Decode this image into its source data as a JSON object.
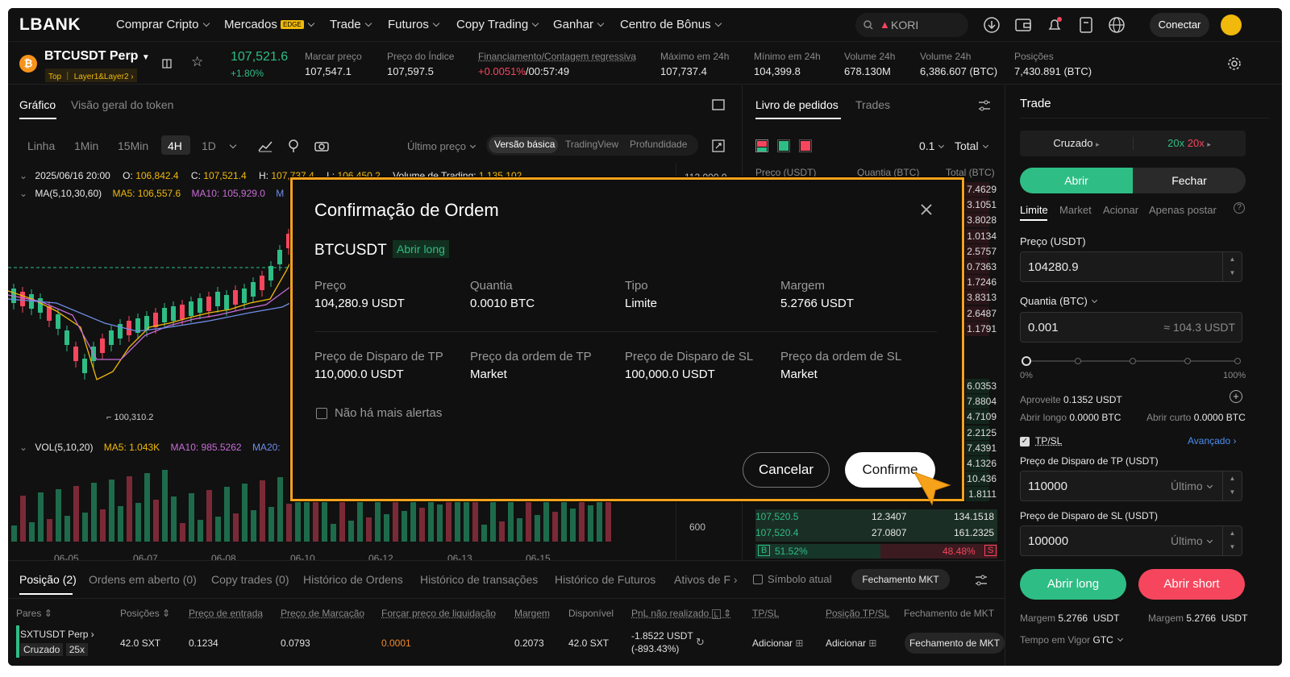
{
  "brand": "LBANK",
  "nav": {
    "items": [
      "Comprar Cripto",
      "Mercados",
      "Trade",
      "Futuros",
      "Copy Trading",
      "Ganhar",
      "Centro de Bônus"
    ],
    "badge_edge": "EDGE",
    "search_value": "KORI",
    "connect": "Conectar"
  },
  "ticker": {
    "symbol": "BTCUSDT Perp",
    "tag_top": "Top",
    "tag_layer": "Layer1&Layer2",
    "price": "107,521.6",
    "change": "+1.80%",
    "stats": [
      {
        "label": "Marcar preço",
        "value": "107,547.1"
      },
      {
        "label": "Preço do Índice",
        "value": "107,597.5"
      },
      {
        "label": "Financiamento/Contagem regressiva",
        "value_a": "+0.0051%",
        "value_b": "/00:57:49"
      },
      {
        "label": "Máximo em 24h",
        "value": "107,737.4"
      },
      {
        "label": "Mínimo em 24h",
        "value": "104,399.8"
      },
      {
        "label": "Volume 24h",
        "value": "678.130M"
      },
      {
        "label": "Volume 24h",
        "value": "6,386.607 (BTC)"
      },
      {
        "label": "Posições",
        "value": "7,430.891 (BTC)"
      }
    ]
  },
  "chart": {
    "tabs": [
      "Gráfico",
      "Visão geral do token"
    ],
    "intervals": [
      "Linha",
      "1Min",
      "15Min",
      "4H",
      "1D"
    ],
    "price_mode": "Último preço",
    "views": [
      "Versão básica",
      "TradingView",
      "Profundidade"
    ],
    "ohlc": {
      "date": "2025/06/16 20:00",
      "o_label": "O:",
      "o": "106,842.4",
      "c_label": "C:",
      "c": "107,521.4",
      "h_label": "H:",
      "h": "107,737.4",
      "l_label": "L:",
      "l": "106,450.2",
      "vol_label": "Volume de Trading:",
      "vol": "1,135.102"
    },
    "ma": {
      "label": "MA(5,10,30,60)",
      "ma5": "MA5: 106,557.6",
      "ma10": "MA10: 105,929.0",
      "ma_short": "M"
    },
    "vol_ind": {
      "label": "VOL(5,10,20)",
      "ma5": "MA5: 1.043K",
      "ma10": "MA10: 985.5262",
      "ma20": "MA20:"
    },
    "low_mark": "100,310.2",
    "axis_top": "112,000.0",
    "axis_vol": "600",
    "dates": [
      "06-05",
      "06-07",
      "06-08",
      "06-10",
      "06-12",
      "06-13",
      "06-15"
    ]
  },
  "orderbook": {
    "tabs": [
      "Livro de pedidos",
      "Trades"
    ],
    "precision": "0.1",
    "total": "Total",
    "headers": [
      "Preço (USDT)",
      "Quantia (BTC)",
      "Total (BTC)"
    ],
    "asks_total": [
      "7.4629",
      "3.1051",
      "3.8028",
      "1.0134",
      "2.5757",
      "0.7363",
      "1.7246",
      "3.8313",
      "2.6487",
      "1.1791"
    ],
    "bids_total": [
      "6.0353",
      "7.8804",
      "4.7109",
      "2.2125",
      "7.4391",
      "4.1326",
      "10.436",
      "1.8111"
    ],
    "bottom_rows": [
      {
        "price": "107,520.5",
        "qty": "12.3407",
        "total": "134.1518"
      },
      {
        "price": "107,520.4",
        "qty": "27.0807",
        "total": "161.2325"
      }
    ],
    "buy_pct": "51.52%",
    "sell_pct": "48.48%",
    "b": "B",
    "s": "S"
  },
  "trade": {
    "title": "Trade",
    "margin_mode": "Cruzado",
    "lev_a": "20x",
    "lev_b": "20x",
    "open": "Abrir",
    "close": "Fechar",
    "types": [
      "Limite",
      "Market",
      "Acionar",
      "Apenas postar"
    ],
    "price_label": "Preço (USDT)",
    "price_value": "104280.9",
    "qty_label": "Quantia (BTC)",
    "qty_value": "0.001",
    "qty_approx": "≈ 104.3 USDT",
    "slider_min": "0%",
    "slider_max": "100%",
    "aproveite_label": "Aproveite",
    "aproveite": "0.1352 USDT",
    "open_long_label": "Abrir longo",
    "open_long": "0.0000 BTC",
    "open_short_label": "Abrir curto",
    "open_short": "0.0000 BTC",
    "tpsl": "TP/SL",
    "advanced": "Avançado",
    "tp_label": "Preço de Disparo de TP (USDT)",
    "tp_value": "110000",
    "tp_mode": "Último",
    "sl_label": "Preço de Disparo de SL (USDT)",
    "sl_value": "100000",
    "sl_mode": "Último",
    "btn_long": "Abrir long",
    "btn_short": "Abrir short",
    "margin_label": "Margem",
    "margin_long": "5.2766",
    "margin_short": "5.2766",
    "usdt": "USDT",
    "tif_label": "Tempo em Vigor",
    "tif": "GTC"
  },
  "positions": {
    "tabs": [
      "Posição (2)",
      "Ordens em aberto (0)",
      "Copy trades (0)",
      "Histórico de Ordens",
      "Histórico de transações",
      "Histórico de Futuros",
      "Ativos de F"
    ],
    "current_symbol": "Símbolo atual",
    "close_mkt": "Fechamento MKT",
    "headers": [
      "Pares",
      "Posições",
      "Preço de entrada",
      "Preço de Marcação",
      "Forçar preço de liquidação",
      "Margem",
      "Disponível",
      "PnL não realizado",
      "TP/SL",
      "Posição TP/SL",
      "Fechamento de MKT"
    ],
    "row": {
      "pair": "SXTUSDT Perp",
      "mode": "Cruzado",
      "lev": "25x",
      "pos": "42.0 SXT",
      "entry": "0.1234",
      "mark": "0.0793",
      "liq": "0.0001",
      "margin": "0.2073",
      "avail": "42.0 SXT",
      "pnl": "-1.8522 USDT",
      "pnl_pct": "(-893.43%)",
      "tpsl": "Adicionar",
      "pos_tpsl": "Adicionar",
      "close": "Fechamento de MKT"
    }
  },
  "modal": {
    "title": "Confirmação de Ordem",
    "symbol": "BTCUSDT",
    "side": "Abrir long",
    "fields": [
      {
        "label": "Preço",
        "value": "104,280.9 USDT"
      },
      {
        "label": "Quantia",
        "value": "0.0010 BTC"
      },
      {
        "label": "Tipo",
        "value": "Limite"
      },
      {
        "label": "Margem",
        "value": "5.2766 USDT"
      },
      {
        "label": "Preço de Disparo de TP",
        "value": "110,000.0 USDT"
      },
      {
        "label": "Preço da ordem de TP",
        "value": "Market"
      },
      {
        "label": "Preço de Disparo de SL",
        "value": "100,000.0 USDT"
      },
      {
        "label": "Preço da ordem de SL",
        "value": "Market"
      }
    ],
    "no_alerts": "Não há mais alertas",
    "cancel": "Cancelar",
    "confirm": "Confirme"
  },
  "colors": {
    "green": "#2ebd85",
    "red": "#f6465d",
    "accent": "#f7a21b",
    "yellow": "#f0b90b"
  }
}
